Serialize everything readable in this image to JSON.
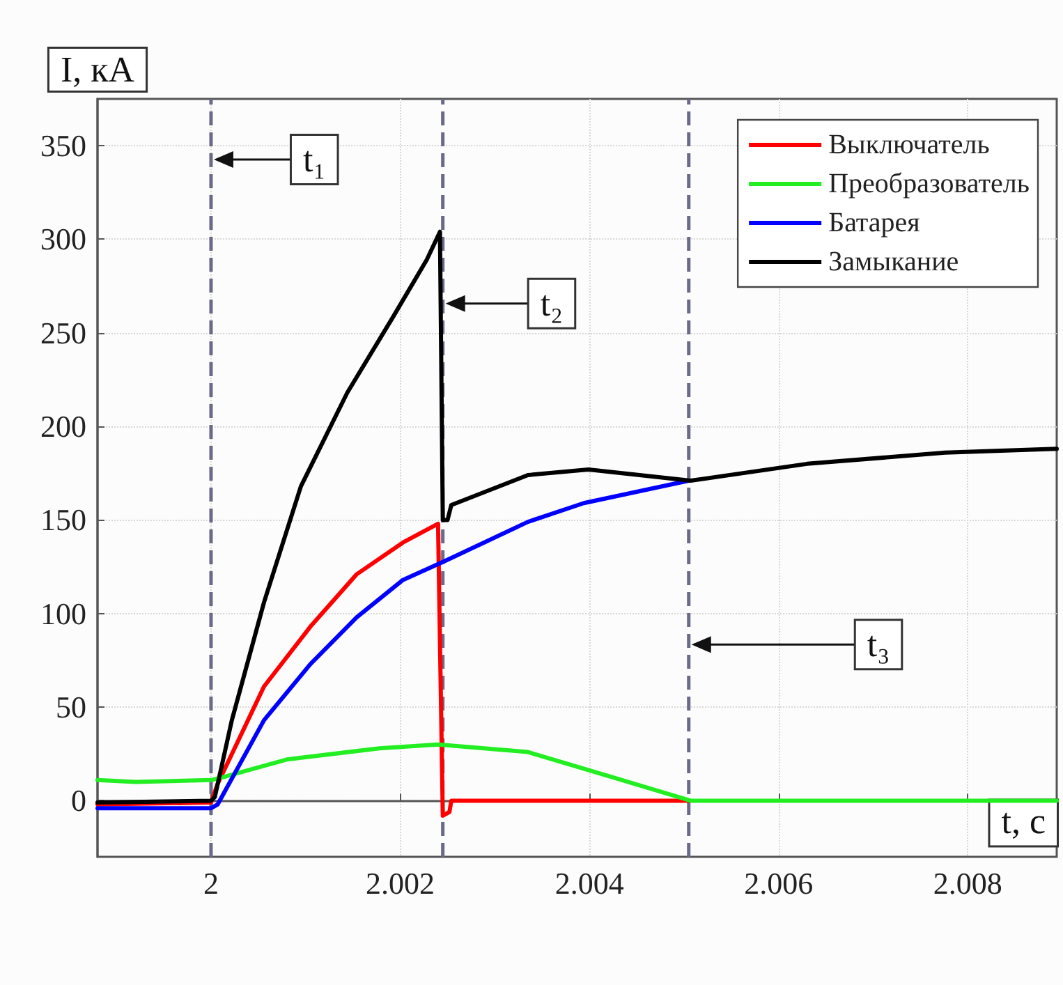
{
  "chart_data": {
    "type": "line",
    "xlabel": "t, с",
    "ylabel": "I, кА",
    "xlim": [
      1.9988,
      2.00894
    ],
    "xticks": [
      2,
      2.002,
      2.004,
      2.006,
      2.008
    ],
    "ylim": [
      -30,
      375
    ],
    "yticks": [
      0,
      50,
      100,
      150,
      200,
      250,
      300,
      350
    ],
    "grid": true,
    "legend": "top right",
    "line_style": "solid",
    "marker": "none",
    "series": [
      {
        "name": "Выключатель",
        "color": "#ff0000",
        "x": [
          1.9988,
          2.0,
          2.00007,
          2.00056,
          2.00105,
          2.00154,
          2.00203,
          2.0024,
          2.00245,
          2.00252,
          2.00254,
          2.0026,
          2.00505
        ],
        "values": [
          -2,
          -1,
          9,
          61,
          93,
          121,
          138,
          148,
          -8,
          -6,
          0,
          0,
          0
        ]
      },
      {
        "name": "Преобразователь",
        "color": "#22ee22",
        "x": [
          1.9988,
          1.9992,
          2.0,
          2.00016,
          2.0008,
          2.00178,
          2.0024,
          2.00335,
          2.00421,
          2.00507,
          2.00894
        ],
        "values": [
          11,
          10,
          11,
          13,
          22,
          28,
          30,
          26,
          13,
          0,
          0
        ]
      },
      {
        "name": "Батарея",
        "color": "#0000ff",
        "x": [
          1.9988,
          2.0,
          2.00007,
          2.00056,
          2.00105,
          2.00154,
          2.00203,
          2.00247,
          2.00335,
          2.00394,
          2.00505
        ],
        "values": [
          -4,
          -4,
          -2,
          43,
          73,
          98,
          118,
          128,
          149,
          159,
          171
        ]
      },
      {
        "name": "Замыкание",
        "color": "#000000",
        "x": [
          1.9988,
          2.0,
          2.00004,
          2.00022,
          2.00056,
          2.00095,
          2.00144,
          2.00193,
          2.00228,
          2.00242,
          2.00245,
          2.0025,
          2.00254,
          2.00335,
          2.00399,
          2.00507,
          2.0063,
          2.00776,
          2.00894
        ],
        "values": [
          -1,
          0,
          2,
          43,
          106,
          168,
          218,
          259,
          289,
          304,
          150,
          150,
          158,
          174,
          177,
          171,
          180,
          186,
          188
        ]
      }
    ],
    "ref_lines": [
      {
        "axis": "x",
        "value": 2,
        "label": "t₁",
        "color": "#6a6a8a",
        "line_style": "dashed"
      },
      {
        "axis": "x",
        "value": 2.00245,
        "label": "t₂",
        "color": "#6a6a8a",
        "line_style": "dashed"
      },
      {
        "axis": "x",
        "value": 2.00505,
        "label": "t₃",
        "color": "#6a6a8a",
        "line_style": "dashed"
      }
    ]
  }
}
